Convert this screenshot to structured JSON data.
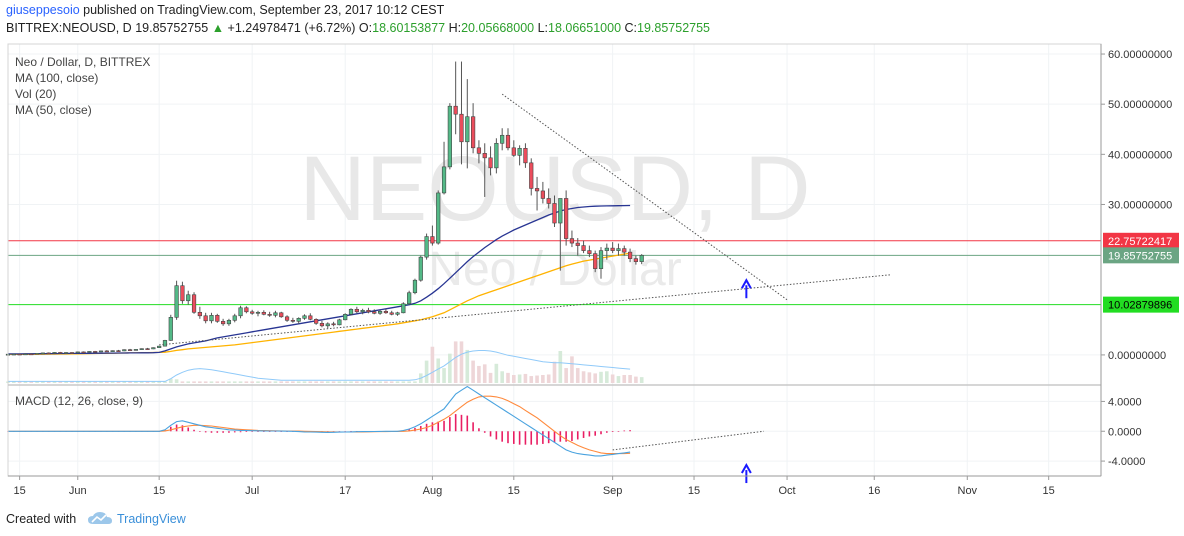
{
  "header": {
    "author": "giuseppesoio",
    "published_text": "published on TradingView.com, September 23, 2017 10:12 CEST",
    "symbol": "BITTREX:NEOUSD, D",
    "last_price": "19.85752755",
    "change": "+1.24978471 (+6.72%)",
    "o_label": "O:",
    "open": "18.60153877",
    "h_label": "H:",
    "high": "20.05668000",
    "l_label": "L:",
    "low": "18.06651000",
    "c_label": "C:",
    "close": "19.85752755"
  },
  "legend": {
    "title": "Neo / Dollar, D, BITTREX",
    "ma100": "MA (100, close)",
    "vol": "Vol (20)",
    "ma50": "MA (50, close)",
    "macd": "MACD (12, 26, close, 9)"
  },
  "watermark": {
    "symbol": "NEOUSD, D",
    "name": "Neo / Dollar"
  },
  "footer": {
    "created_with": "Created with",
    "brand": "TradingView"
  },
  "chart_data": {
    "type": "candlestick",
    "main_axis": {
      "labels": [
        "60.00000000",
        "50.00000000",
        "40.00000000",
        "30.00000000",
        "0.00000000"
      ],
      "values": [
        60,
        50,
        40,
        30,
        0
      ],
      "ylim": [
        -5.6,
        62
      ]
    },
    "price_markers": [
      {
        "value": 22.75722417,
        "label": "22.75722417",
        "color": "#f23645"
      },
      {
        "value": 19.85752755,
        "label": "19.85752755",
        "color": "#6ba583"
      },
      {
        "value": 10.02879896,
        "label": "10.02879896",
        "color": "#22dd22"
      }
    ],
    "macd_axis": {
      "labels": [
        "4.0000",
        "0.0000",
        "-4.0000"
      ],
      "values": [
        4,
        0,
        -4
      ],
      "ylim": [
        -6,
        5.8
      ]
    },
    "x_axis": {
      "ticks": [
        {
          "label": "15",
          "day": 0
        },
        {
          "label": "Jun",
          "day": 10
        },
        {
          "label": "15",
          "day": 24
        },
        {
          "label": "Jul",
          "day": 40
        },
        {
          "label": "17",
          "day": 56
        },
        {
          "label": "Aug",
          "day": 71
        },
        {
          "label": "15",
          "day": 85
        },
        {
          "label": "Sep",
          "day": 102
        },
        {
          "label": "15",
          "day": 116
        },
        {
          "label": "Oct",
          "day": 132
        },
        {
          "label": "16",
          "day": 147
        },
        {
          "label": "Nov",
          "day": 163
        },
        {
          "label": "15",
          "day": 177
        }
      ],
      "range_days": [
        -2,
        186
      ]
    },
    "first_candle_day": -2,
    "candles": [
      [
        0.1,
        0.18,
        0.05,
        0.15
      ],
      [
        0.15,
        0.22,
        0.1,
        0.18
      ],
      [
        0.18,
        0.2,
        0.08,
        0.12
      ],
      [
        0.12,
        0.25,
        0.1,
        0.22
      ],
      [
        0.22,
        0.3,
        0.15,
        0.2
      ],
      [
        0.2,
        0.35,
        0.18,
        0.32
      ],
      [
        0.32,
        0.45,
        0.25,
        0.4
      ],
      [
        0.4,
        0.5,
        0.3,
        0.35
      ],
      [
        0.35,
        0.55,
        0.3,
        0.5
      ],
      [
        0.5,
        0.6,
        0.35,
        0.4
      ],
      [
        0.4,
        0.55,
        0.35,
        0.48
      ],
      [
        0.48,
        0.55,
        0.4,
        0.45
      ],
      [
        0.45,
        0.65,
        0.42,
        0.6
      ],
      [
        0.6,
        0.7,
        0.5,
        0.55
      ],
      [
        0.55,
        0.75,
        0.5,
        0.7
      ],
      [
        0.7,
        0.8,
        0.55,
        0.6
      ],
      [
        0.6,
        0.85,
        0.55,
        0.8
      ],
      [
        0.8,
        0.95,
        0.7,
        0.75
      ],
      [
        0.75,
        0.9,
        0.65,
        0.85
      ],
      [
        0.85,
        1.0,
        0.75,
        0.8
      ],
      [
        0.8,
        1.1,
        0.75,
        1.05
      ],
      [
        1.05,
        1.2,
        0.9,
        0.95
      ],
      [
        0.95,
        1.15,
        0.9,
        1.1
      ],
      [
        1.1,
        1.3,
        1.0,
        1.25
      ],
      [
        1.25,
        1.4,
        1.1,
        1.2
      ],
      [
        1.2,
        1.5,
        1.15,
        1.45
      ],
      [
        1.45,
        1.8,
        1.4,
        1.75
      ],
      [
        1.75,
        3.0,
        1.7,
        2.9
      ],
      [
        2.9,
        8.0,
        2.8,
        7.5
      ],
      [
        7.5,
        14.8,
        7.0,
        13.8
      ],
      [
        13.8,
        14.6,
        10.2,
        10.8
      ],
      [
        10.8,
        12.8,
        10.0,
        12.0
      ],
      [
        12.0,
        12.5,
        8.2,
        8.5
      ],
      [
        8.5,
        9.6,
        7.2,
        7.8
      ],
      [
        7.8,
        8.4,
        6.3,
        6.8
      ],
      [
        6.8,
        8.4,
        6.3,
        7.9
      ],
      [
        7.9,
        8.2,
        6.4,
        6.7
      ],
      [
        6.7,
        7.2,
        5.8,
        6.2
      ],
      [
        6.2,
        7.2,
        5.8,
        6.9
      ],
      [
        6.9,
        8.2,
        6.5,
        7.8
      ],
      [
        7.8,
        9.8,
        7.3,
        9.4
      ],
      [
        9.4,
        9.7,
        8.3,
        8.6
      ],
      [
        8.6,
        9.0,
        8.0,
        8.3
      ],
      [
        8.3,
        8.8,
        7.7,
        8.5
      ],
      [
        8.5,
        8.9,
        7.9,
        8.1
      ],
      [
        8.1,
        8.6,
        7.6,
        7.9
      ],
      [
        7.9,
        8.8,
        7.5,
        8.4
      ],
      [
        8.4,
        8.6,
        7.4,
        7.6
      ],
      [
        7.6,
        7.9,
        6.6,
        6.9
      ],
      [
        6.9,
        7.4,
        6.4,
        6.7
      ],
      [
        6.7,
        7.5,
        6.2,
        7.3
      ],
      [
        7.3,
        8.1,
        7.0,
        7.8
      ],
      [
        7.8,
        8.3,
        6.9,
        7.1
      ],
      [
        7.1,
        7.3,
        6.0,
        6.3
      ],
      [
        6.3,
        6.8,
        5.5,
        5.8
      ],
      [
        5.8,
        6.5,
        5.3,
        6.2
      ],
      [
        6.2,
        6.6,
        5.7,
        6.0
      ],
      [
        6.0,
        7.2,
        5.9,
        7.0
      ],
      [
        7.0,
        8.3,
        6.9,
        8.1
      ],
      [
        8.1,
        9.3,
        7.9,
        9.1
      ],
      [
        9.1,
        9.6,
        8.3,
        8.6
      ],
      [
        8.6,
        9.2,
        8.1,
        8.9
      ],
      [
        8.9,
        9.4,
        8.3,
        8.6
      ],
      [
        8.6,
        9.1,
        8.1,
        8.3
      ],
      [
        8.3,
        8.9,
        8.0,
        8.7
      ],
      [
        8.7,
        9.2,
        8.2,
        8.4
      ],
      [
        8.4,
        8.8,
        7.9,
        8.1
      ],
      [
        8.1,
        8.6,
        7.8,
        8.4
      ],
      [
        8.4,
        10.5,
        8.3,
        10.2
      ],
      [
        10.2,
        12.8,
        10.0,
        12.4
      ],
      [
        12.4,
        15.2,
        12.1,
        14.9
      ],
      [
        14.9,
        19.8,
        14.6,
        19.5
      ],
      [
        19.5,
        24.2,
        19.0,
        23.6
      ],
      [
        23.6,
        25.8,
        21.8,
        22.3
      ],
      [
        22.3,
        32.8,
        22.0,
        32.3
      ],
      [
        32.3,
        42.5,
        32.0,
        37.5
      ],
      [
        37.5,
        50.2,
        37.0,
        49.6
      ],
      [
        49.6,
        58.5,
        44.0,
        48.0
      ],
      [
        48.0,
        58.5,
        38.0,
        42.5
      ],
      [
        42.5,
        55.0,
        37.2,
        47.5
      ],
      [
        47.5,
        50.2,
        40.2,
        41.3
      ],
      [
        41.3,
        42.8,
        38.2,
        40.2
      ],
      [
        40.2,
        42.2,
        31.5,
        39.3
      ],
      [
        39.3,
        41.6,
        35.8,
        37.3
      ],
      [
        37.3,
        43.2,
        36.2,
        42.2
      ],
      [
        42.2,
        45.2,
        40.8,
        43.8
      ],
      [
        43.8,
        45.2,
        40.8,
        41.3
      ],
      [
        41.3,
        42.8,
        39.5,
        39.8
      ],
      [
        39.8,
        41.8,
        37.8,
        41.2
      ],
      [
        41.2,
        42.2,
        37.3,
        38.3
      ],
      [
        38.3,
        39.2,
        31.8,
        33.2
      ],
      [
        33.2,
        35.5,
        28.8,
        32.7
      ],
      [
        32.7,
        34.5,
        30.2,
        31.2
      ],
      [
        31.2,
        33.2,
        29.2,
        30.2
      ],
      [
        30.2,
        31.8,
        25.5,
        26.3
      ],
      [
        26.3,
        30.8,
        16.8,
        31.2
      ],
      [
        31.2,
        32.8,
        21.8,
        23.2
      ],
      [
        23.2,
        24.8,
        21.5,
        22.3
      ],
      [
        22.3,
        23.3,
        19.8,
        21.8
      ],
      [
        21.8,
        22.8,
        20.3,
        20.8
      ],
      [
        20.8,
        21.8,
        19.5,
        20.2
      ],
      [
        20.2,
        20.8,
        16.5,
        17.2
      ],
      [
        17.2,
        21.5,
        15.2,
        20.8
      ],
      [
        20.8,
        22.2,
        19.0,
        21.3
      ],
      [
        21.3,
        22.5,
        20.3,
        20.8
      ],
      [
        20.8,
        22.2,
        19.8,
        21.2
      ],
      [
        21.2,
        21.8,
        19.8,
        20.5
      ],
      [
        20.5,
        21.2,
        18.5,
        19.2
      ],
      [
        19.2,
        19.8,
        18.0,
        18.6
      ],
      [
        18.6,
        20.1,
        18.1,
        19.86
      ]
    ],
    "volume": {
      "ylim": [
        0,
        15
      ],
      "values": [
        0.3,
        0.3,
        0.3,
        0.3,
        0.3,
        0.3,
        0.3,
        0.3,
        0.3,
        0.3,
        0.3,
        0.3,
        0.3,
        0.3,
        0.3,
        0.3,
        0.3,
        0.3,
        0.3,
        0.3,
        0.3,
        0.3,
        0.3,
        0.3,
        0.3,
        0.3,
        0.3,
        0.3,
        0.8,
        0.7,
        0.3,
        0.3,
        0.3,
        0.3,
        0.3,
        0.3,
        0.3,
        0.3,
        0.3,
        0.3,
        0.3,
        0.3,
        0.3,
        0.3,
        0.3,
        0.3,
        0.3,
        0.3,
        0.3,
        0.3,
        0.3,
        0.3,
        0.3,
        0.3,
        0.3,
        0.3,
        0.3,
        0.3,
        0.3,
        0.3,
        0.3,
        0.3,
        0.3,
        0.3,
        0.3,
        0.3,
        0.3,
        0.3,
        0.3,
        0.3,
        0.3,
        1.8,
        4.2,
        6.8,
        4.6,
        2.8,
        5.5,
        7.8,
        7.8,
        6.2,
        4.2,
        3.2,
        3.5,
        1.9,
        3.6,
        2.2,
        1.9,
        1.5,
        1.6,
        1.7,
        1.3,
        1.4,
        1.5,
        1.6,
        4.0,
        6.0,
        2.8,
        5.0,
        2.8,
        2.2,
        2.0,
        1.8,
        2.1,
        2.2,
        1.6,
        1.3,
        1.5,
        1.5,
        1.2,
        1.1
      ]
    },
    "ma100": [
      0.1,
      0.1,
      0.11,
      0.12,
      0.13,
      0.14,
      0.15,
      0.16,
      0.17,
      0.18,
      0.19,
      0.2,
      0.22,
      0.24,
      0.26,
      0.28,
      0.3,
      0.32,
      0.34,
      0.36,
      0.38,
      0.4,
      0.42,
      0.44,
      0.46,
      0.48,
      0.5,
      0.55,
      0.7,
      0.9,
      1.05,
      1.2,
      1.3,
      1.4,
      1.5,
      1.6,
      1.7,
      1.8,
      1.9,
      2.0,
      2.15,
      2.3,
      2.45,
      2.6,
      2.75,
      2.9,
      3.05,
      3.2,
      3.35,
      3.5,
      3.65,
      3.8,
      3.95,
      4.1,
      4.25,
      4.4,
      4.55,
      4.7,
      4.85,
      5.0,
      5.15,
      5.3,
      5.45,
      5.6,
      5.75,
      5.9,
      6.05,
      6.2,
      6.4,
      6.6,
      6.8,
      7.0,
      7.3,
      7.6,
      8.0,
      8.4,
      9.0,
      9.6,
      10.2,
      10.8,
      11.3,
      11.8,
      12.2,
      12.6,
      13.0,
      13.4,
      13.8,
      14.2,
      14.6,
      15.0,
      15.4,
      15.8,
      16.2,
      16.6,
      17.0,
      17.4,
      17.8,
      18.1,
      18.4,
      18.7,
      18.9,
      19.1,
      19.3,
      19.5,
      19.7,
      19.9,
      20.1,
      20.3
    ],
    "ma50": [
      0.2,
      0.2,
      0.21,
      0.22,
      0.23,
      0.24,
      0.25,
      0.26,
      0.27,
      0.28,
      0.29,
      0.3,
      0.31,
      0.32,
      0.33,
      0.34,
      0.35,
      0.36,
      0.37,
      0.38,
      0.39,
      0.4,
      0.41,
      0.42,
      0.43,
      0.44,
      0.5,
      0.8,
      1.2,
      1.6,
      1.9,
      2.2,
      2.4,
      2.6,
      2.8,
      3.1,
      3.4,
      3.6,
      3.8,
      4.0,
      4.2,
      4.4,
      4.6,
      4.8,
      5.0,
      5.2,
      5.4,
      5.6,
      5.8,
      6.0,
      6.2,
      6.4,
      6.6,
      6.8,
      7.0,
      7.2,
      7.4,
      7.6,
      7.8,
      8.0,
      8.2,
      8.4,
      8.6,
      8.8,
      9.0,
      9.2,
      9.4,
      9.6,
      9.8,
      10.0,
      10.3,
      10.8,
      11.5,
      12.3,
      13.2,
      14.2,
      15.3,
      16.4,
      17.5,
      18.6,
      19.6,
      20.5,
      21.4,
      22.2,
      23.0,
      23.7,
      24.3,
      24.9,
      25.4,
      25.9,
      26.4,
      26.9,
      27.4,
      27.9,
      28.3,
      28.7,
      29.0,
      29.2,
      29.4,
      29.5,
      29.6,
      29.65,
      29.7,
      29.72,
      29.74,
      29.76,
      29.78,
      29.8
    ],
    "vol_ma": [
      0.3,
      0.3,
      0.3,
      0.3,
      0.3,
      0.3,
      0.3,
      0.3,
      0.3,
      0.3,
      0.3,
      0.3,
      0.3,
      0.3,
      0.3,
      0.3,
      0.3,
      0.3,
      0.3,
      0.3,
      0.3,
      0.3,
      0.3,
      0.3,
      0.3,
      0.3,
      0.3,
      0.3,
      0.8,
      1.5,
      2.0,
      2.4,
      2.6,
      2.7,
      2.6,
      2.5,
      2.3,
      2.1,
      1.9,
      1.7,
      1.5,
      1.3,
      1.1,
      0.9,
      0.8,
      0.7,
      0.6,
      0.5,
      0.5,
      0.5,
      0.5,
      0.5,
      0.5,
      0.5,
      0.5,
      0.5,
      0.5,
      0.5,
      0.5,
      0.5,
      0.5,
      0.5,
      0.5,
      0.5,
      0.5,
      0.5,
      0.5,
      0.5,
      0.5,
      0.5,
      0.6,
      0.9,
      1.4,
      2.0,
      2.6,
      3.2,
      4.0,
      4.8,
      5.4,
      5.8,
      6.0,
      6.1,
      6.1,
      6.0,
      5.8,
      5.5,
      5.2,
      5.0,
      4.8,
      4.6,
      4.4,
      4.2,
      4.0,
      3.9,
      3.8,
      3.8,
      3.7,
      3.6,
      3.5,
      3.4,
      3.3,
      3.2,
      3.1,
      3.0,
      2.9,
      2.8,
      2.7,
      2.6
    ],
    "macd_line": [
      0,
      0,
      0,
      0,
      0,
      0,
      0,
      0,
      0,
      0,
      0,
      0,
      0,
      0,
      0,
      0,
      0,
      0,
      0,
      0,
      0,
      0,
      0,
      0,
      0,
      0,
      0,
      0.2,
      0.8,
      1.3,
      1.4,
      1.2,
      1.0,
      0.8,
      0.6,
      0.5,
      0.4,
      0.3,
      0.2,
      0.15,
      0.12,
      0.1,
      0.08,
      0.06,
      0.05,
      0.04,
      0.03,
      0.02,
      0.01,
      0,
      -0.05,
      -0.08,
      -0.1,
      -0.12,
      -0.14,
      -0.15,
      -0.14,
      -0.12,
      -0.1,
      -0.08,
      -0.06,
      -0.05,
      -0.04,
      -0.03,
      -0.02,
      -0.01,
      0,
      0,
      0.1,
      0.3,
      0.6,
      1.0,
      1.5,
      2.0,
      2.5,
      3.0,
      4.0,
      5.0,
      5.5,
      6.0,
      5.5,
      5.0,
      4.5,
      4.0,
      3.5,
      3.0,
      2.5,
      2.0,
      1.5,
      1.0,
      0.5,
      0.0,
      -0.5,
      -1.0,
      -1.5,
      -2.0,
      -2.5,
      -2.8,
      -3.0,
      -3.1,
      -3.2,
      -3.3,
      -3.3,
      -3.2,
      -3.1,
      -3.0,
      -2.9,
      -2.8
    ],
    "signal_line": [
      0,
      0,
      0,
      0,
      0,
      0,
      0,
      0,
      0,
      0,
      0,
      0,
      0,
      0,
      0,
      0,
      0,
      0,
      0,
      0,
      0,
      0,
      0,
      0,
      0,
      0,
      0,
      0.05,
      0.2,
      0.4,
      0.6,
      0.7,
      0.8,
      0.8,
      0.75,
      0.7,
      0.6,
      0.5,
      0.4,
      0.3,
      0.25,
      0.2,
      0.15,
      0.12,
      0.1,
      0.08,
      0.06,
      0.05,
      0.04,
      0.03,
      0.02,
      0,
      -0.02,
      -0.04,
      -0.06,
      -0.08,
      -0.09,
      -0.1,
      -0.1,
      -0.1,
      -0.09,
      -0.08,
      -0.07,
      -0.06,
      -0.05,
      -0.04,
      -0.03,
      -0.02,
      0,
      0.05,
      0.15,
      0.3,
      0.5,
      0.8,
      1.2,
      1.6,
      2.1,
      2.7,
      3.3,
      3.9,
      4.3,
      4.6,
      4.7,
      4.7,
      4.6,
      4.4,
      4.1,
      3.7,
      3.3,
      2.8,
      2.3,
      1.8,
      1.2,
      0.6,
      0.0,
      -0.6,
      -1.1,
      -1.5,
      -1.9,
      -2.2,
      -2.5,
      -2.7,
      -2.9,
      -3.0,
      -3.0,
      -3.0,
      -3.0,
      -2.95
    ],
    "trendlines": [
      {
        "style": "dotted",
        "color": "#555",
        "from": {
          "day": 83,
          "value": 52
        },
        "to": {
          "day": 132,
          "value": 11
        }
      },
      {
        "style": "dotted",
        "color": "#555",
        "from": {
          "day": 24,
          "value": 2
        },
        "to": {
          "day": 150,
          "value": 16
        }
      },
      {
        "style": "dotted",
        "color": "#555",
        "panel": "macd",
        "from": {
          "day": 102,
          "value": -2.5
        },
        "to": {
          "day": 128,
          "value": 0
        }
      }
    ],
    "annotations": [
      {
        "type": "up-arrow",
        "panel": "main",
        "day": 125,
        "value": 14.5,
        "color": "#1a1aff"
      },
      {
        "type": "up-arrow",
        "panel": "macd",
        "day": 125,
        "value": -4.8,
        "color": "#1a1aff"
      }
    ]
  }
}
